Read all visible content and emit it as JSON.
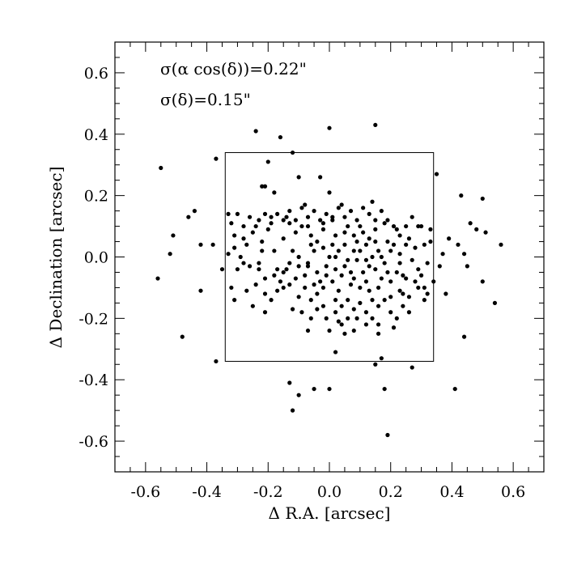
{
  "chart_data": {
    "type": "scatter",
    "title": "",
    "xlabel": "Δ R.A. [arcsec]",
    "ylabel": "Δ Declination [arcsec]",
    "xlim": [
      -0.7,
      0.7
    ],
    "ylim": [
      -0.7,
      0.7
    ],
    "xticks": [
      -0.6,
      -0.4,
      -0.2,
      0.0,
      0.2,
      0.4,
      0.6
    ],
    "yticks": [
      -0.6,
      -0.4,
      -0.2,
      0.0,
      0.2,
      0.4,
      0.6
    ],
    "xtick_labels": [
      "-0.6",
      "-0.4",
      "-0.2",
      "0.0",
      "0.2",
      "0.4",
      "0.6"
    ],
    "ytick_labels": [
      "-0.6",
      "-0.4",
      "-0.2",
      "0.0",
      "0.2",
      "0.4",
      "0.6"
    ],
    "minor_tick_step": 0.05,
    "grid": false,
    "annotations": [
      "σ(α cos(δ))=0.22\"",
      "σ(δ)=0.15\""
    ],
    "box": {
      "x_range": [
        -0.34,
        0.34
      ],
      "y_range": [
        -0.34,
        0.34
      ]
    },
    "marker_color": "#000000",
    "series": [
      {
        "points": [
          [
            -0.55,
            0.29
          ],
          [
            -0.51,
            0.07
          ],
          [
            -0.52,
            0.01
          ],
          [
            -0.56,
            -0.07
          ],
          [
            -0.46,
            0.13
          ],
          [
            -0.44,
            0.15
          ],
          [
            -0.42,
            0.04
          ],
          [
            -0.38,
            0.04
          ],
          [
            -0.42,
            -0.11
          ],
          [
            -0.48,
            -0.26
          ],
          [
            -0.37,
            -0.34
          ],
          [
            -0.37,
            0.32
          ],
          [
            -0.35,
            -0.04
          ],
          [
            -0.33,
            0.14
          ],
          [
            -0.32,
            0.11
          ],
          [
            -0.31,
            0.07
          ],
          [
            -0.33,
            0.01
          ],
          [
            -0.3,
            -0.04
          ],
          [
            -0.32,
            -0.1
          ],
          [
            -0.31,
            -0.14
          ],
          [
            -0.3,
            0.14
          ],
          [
            -0.28,
            0.06
          ],
          [
            -0.28,
            -0.02
          ],
          [
            -0.26,
            0.13
          ],
          [
            -0.27,
            -0.11
          ],
          [
            -0.25,
            -0.16
          ],
          [
            -0.24,
            -0.09
          ],
          [
            -0.24,
            0.41
          ],
          [
            -0.22,
            0.23
          ],
          [
            -0.21,
            0.23
          ],
          [
            -0.2,
            0.31
          ],
          [
            -0.22,
            0.05
          ],
          [
            -0.23,
            -0.02
          ],
          [
            -0.21,
            -0.12
          ],
          [
            -0.21,
            -0.18
          ],
          [
            -0.16,
            0.39
          ],
          [
            -0.18,
            0.21
          ],
          [
            -0.19,
            0.13
          ],
          [
            -0.18,
            0.02
          ],
          [
            -0.17,
            -0.04
          ],
          [
            -0.15,
            0.06
          ],
          [
            -0.14,
            -0.04
          ],
          [
            -0.15,
            -0.1
          ],
          [
            -0.13,
            -0.09
          ],
          [
            -0.12,
            0.34
          ],
          [
            -0.13,
            0.11
          ],
          [
            -0.11,
            0.08
          ],
          [
            -0.1,
            0.0
          ],
          [
            -0.12,
            -0.17
          ],
          [
            -0.1,
            -0.13
          ],
          [
            -0.1,
            0.26
          ],
          [
            -0.08,
            0.17
          ],
          [
            -0.07,
            0.1
          ],
          [
            -0.06,
            0.04
          ],
          [
            -0.07,
            -0.02
          ],
          [
            -0.08,
            -0.06
          ],
          [
            -0.05,
            -0.09
          ],
          [
            -0.07,
            -0.24
          ],
          [
            -0.04,
            -0.12
          ],
          [
            -0.03,
            0.26
          ],
          [
            -0.02,
            0.11
          ],
          [
            -0.02,
            0.03
          ],
          [
            -0.01,
            -0.06
          ],
          [
            -0.02,
            -0.16
          ],
          [
            -0.01,
            -0.2
          ],
          [
            0.0,
            0.42
          ],
          [
            0.0,
            0.21
          ],
          [
            0.01,
            0.13
          ],
          [
            0.02,
            0.0
          ],
          [
            0.01,
            -0.08
          ],
          [
            0.03,
            -0.11
          ],
          [
            0.02,
            -0.18
          ],
          [
            0.03,
            -0.21
          ],
          [
            0.02,
            -0.31
          ],
          [
            0.04,
            0.17
          ],
          [
            0.05,
            0.04
          ],
          [
            0.05,
            -0.03
          ],
          [
            0.07,
            -0.05
          ],
          [
            0.06,
            -0.14
          ],
          [
            0.05,
            -0.25
          ],
          [
            0.08,
            0.07
          ],
          [
            0.08,
            -0.07
          ],
          [
            0.1,
            -0.1
          ],
          [
            0.09,
            -0.2
          ],
          [
            0.1,
            0.1
          ],
          [
            0.12,
            0.04
          ],
          [
            0.12,
            -0.01
          ],
          [
            0.13,
            -0.11
          ],
          [
            0.14,
            -0.14
          ],
          [
            0.14,
            0.18
          ],
          [
            0.15,
            0.09
          ],
          [
            0.16,
            0.02
          ],
          [
            0.15,
            -0.04
          ],
          [
            0.17,
            -0.07
          ],
          [
            0.16,
            -0.25
          ],
          [
            0.15,
            0.43
          ],
          [
            0.17,
            -0.33
          ],
          [
            0.18,
            0.11
          ],
          [
            0.19,
            0.05
          ],
          [
            0.2,
            -0.08
          ],
          [
            0.2,
            -0.13
          ],
          [
            0.21,
            -0.23
          ],
          [
            0.19,
            -0.58
          ],
          [
            0.22,
            0.09
          ],
          [
            0.23,
            0.01
          ],
          [
            0.24,
            -0.06
          ],
          [
            0.23,
            -0.11
          ],
          [
            0.25,
            0.04
          ],
          [
            0.26,
            -0.18
          ],
          [
            0.27,
            -0.36
          ],
          [
            0.28,
            0.03
          ],
          [
            0.29,
            -0.04
          ],
          [
            0.3,
            0.1
          ],
          [
            0.31,
            -0.1
          ],
          [
            0.32,
            -0.02
          ],
          [
            0.33,
            0.05
          ],
          [
            0.34,
            -0.08
          ],
          [
            0.35,
            0.27
          ],
          [
            0.36,
            -0.03
          ],
          [
            0.37,
            0.01
          ],
          [
            0.38,
            -0.12
          ],
          [
            0.39,
            0.06
          ],
          [
            0.41,
            -0.43
          ],
          [
            0.43,
            0.2
          ],
          [
            0.42,
            0.04
          ],
          [
            0.44,
            0.01
          ],
          [
            0.45,
            -0.03
          ],
          [
            0.44,
            -0.26
          ],
          [
            0.46,
            0.11
          ],
          [
            0.48,
            0.09
          ],
          [
            0.5,
            0.19
          ],
          [
            0.51,
            0.08
          ],
          [
            0.5,
            -0.08
          ],
          [
            0.54,
            -0.15
          ],
          [
            0.56,
            0.04
          ],
          [
            -0.12,
            -0.5
          ],
          [
            -0.13,
            -0.41
          ],
          [
            -0.1,
            -0.45
          ],
          [
            -0.05,
            -0.43
          ],
          [
            0.0,
            -0.43
          ],
          [
            0.15,
            -0.35
          ],
          [
            0.18,
            -0.43
          ],
          [
            0.05,
            0.08
          ],
          [
            -0.04,
            0.05
          ],
          [
            0.08,
            0.02
          ],
          [
            -0.09,
            0.1
          ],
          [
            0.13,
            0.06
          ],
          [
            -0.14,
            0.13
          ],
          [
            0.02,
            0.07
          ],
          [
            0.06,
            -0.01
          ],
          [
            -0.01,
            -0.03
          ],
          [
            0.03,
            0.02
          ],
          [
            -0.05,
            0.02
          ],
          [
            0.1,
            0.02
          ],
          [
            0.11,
            -0.05
          ],
          [
            -0.03,
            -0.08
          ],
          [
            0.04,
            -0.06
          ],
          [
            0.07,
            -0.09
          ],
          [
            -0.06,
            0.07
          ],
          [
            0.09,
            0.05
          ],
          [
            0.0,
            0.0
          ],
          [
            0.01,
            0.04
          ],
          [
            -0.02,
            0.09
          ],
          [
            0.12,
            -0.08
          ],
          [
            0.14,
            0.0
          ],
          [
            0.16,
            -0.1
          ],
          [
            0.18,
            -0.02
          ],
          [
            0.2,
            0.02
          ],
          [
            0.22,
            -0.05
          ],
          [
            0.24,
            -0.12
          ],
          [
            0.26,
            0.06
          ],
          [
            0.28,
            -0.08
          ],
          [
            -0.16,
            -0.08
          ],
          [
            -0.18,
            -0.06
          ],
          [
            -0.2,
            0.09
          ],
          [
            -0.22,
            0.02
          ],
          [
            -0.24,
            0.1
          ],
          [
            -0.26,
            -0.03
          ],
          [
            -0.28,
            0.1
          ],
          [
            -0.12,
            0.02
          ],
          [
            -0.1,
            -0.03
          ],
          [
            -0.08,
            -0.1
          ],
          [
            -0.06,
            -0.14
          ],
          [
            -0.04,
            -0.17
          ],
          [
            -0.02,
            -0.1
          ],
          [
            0.02,
            -0.14
          ],
          [
            0.04,
            -0.16
          ],
          [
            0.06,
            -0.2
          ],
          [
            0.08,
            -0.17
          ],
          [
            0.1,
            -0.15
          ],
          [
            0.12,
            -0.18
          ],
          [
            0.14,
            -0.2
          ],
          [
            0.16,
            -0.16
          ],
          [
            0.18,
            -0.14
          ],
          [
            0.2,
            -0.18
          ],
          [
            0.22,
            -0.2
          ],
          [
            0.24,
            -0.16
          ],
          [
            0.26,
            -0.13
          ],
          [
            0.3,
            -0.06
          ],
          [
            0.32,
            -0.12
          ],
          [
            0.33,
            0.09
          ],
          [
            0.31,
            0.04
          ],
          [
            0.29,
            0.1
          ],
          [
            0.27,
            0.13
          ],
          [
            0.25,
            0.1
          ],
          [
            0.23,
            0.07
          ],
          [
            0.21,
            0.1
          ],
          [
            0.19,
            0.12
          ],
          [
            0.17,
            0.15
          ],
          [
            0.15,
            0.12
          ],
          [
            0.13,
            0.14
          ],
          [
            0.11,
            0.16
          ],
          [
            0.09,
            0.12
          ],
          [
            0.07,
            0.15
          ],
          [
            0.05,
            0.13
          ],
          [
            0.03,
            0.16
          ],
          [
            0.01,
            0.12
          ],
          [
            -0.01,
            0.14
          ],
          [
            -0.03,
            0.12
          ],
          [
            -0.05,
            0.15
          ],
          [
            -0.07,
            0.13
          ],
          [
            -0.09,
            0.16
          ],
          [
            -0.11,
            0.12
          ],
          [
            -0.13,
            0.15
          ],
          [
            -0.15,
            0.12
          ],
          [
            -0.17,
            0.14
          ],
          [
            -0.19,
            0.11
          ],
          [
            -0.21,
            0.14
          ],
          [
            -0.23,
            0.12
          ],
          [
            -0.25,
            0.08
          ],
          [
            -0.27,
            0.04
          ],
          [
            -0.29,
            0.0
          ],
          [
            -0.31,
            0.03
          ],
          [
            0.02,
            -0.04
          ],
          [
            -0.04,
            -0.05
          ],
          [
            0.06,
            0.1
          ],
          [
            -0.07,
            -0.03
          ],
          [
            0.09,
            -0.01
          ],
          [
            0.11,
            0.08
          ],
          [
            0.13,
            -0.03
          ],
          [
            0.15,
            0.05
          ],
          [
            0.17,
            0.0
          ],
          [
            0.19,
            -0.05
          ],
          [
            0.21,
            0.04
          ],
          [
            0.23,
            -0.02
          ],
          [
            0.25,
            -0.07
          ],
          [
            0.27,
            -0.01
          ],
          [
            0.29,
            -0.1
          ],
          [
            0.31,
            -0.14
          ],
          [
            -0.11,
            -0.07
          ],
          [
            -0.13,
            -0.02
          ],
          [
            -0.15,
            -0.05
          ],
          [
            -0.17,
            -0.11
          ],
          [
            -0.19,
            -0.14
          ],
          [
            -0.21,
            -0.07
          ],
          [
            -0.23,
            -0.04
          ],
          [
            -0.09,
            -0.18
          ],
          [
            -0.06,
            -0.2
          ],
          [
            0.0,
            -0.24
          ],
          [
            0.04,
            -0.22
          ],
          [
            0.08,
            -0.24
          ],
          [
            0.12,
            -0.22
          ],
          [
            0.16,
            -0.22
          ]
        ]
      }
    ]
  }
}
